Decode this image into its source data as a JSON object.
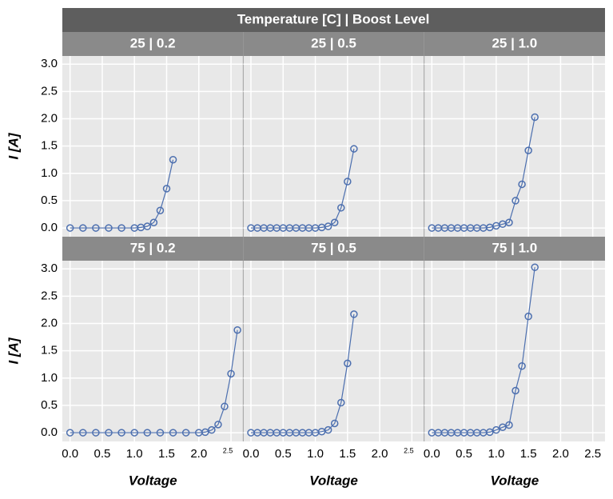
{
  "title": "Temperature [C] | Boost Level",
  "chart_data": [
    {
      "type": "line",
      "title": "25 | 0.2",
      "color": "#4c6faf",
      "grid": true,
      "ylabel": "I [A]",
      "x": [
        0,
        0.2,
        0.4,
        0.6,
        0.8,
        1.0,
        1.1,
        1.2,
        1.3,
        1.4,
        1.5,
        1.6
      ],
      "values": [
        0,
        0,
        0,
        0,
        0,
        0,
        0.01,
        0.03,
        0.1,
        0.32,
        0.72,
        1.25
      ],
      "xlim": [
        -0.12,
        2.69
      ],
      "ylim": [
        -0.16,
        3.15
      ],
      "xticks": [
        {
          "value": 0,
          "label": "0.0"
        },
        0.5,
        {
          "value": 1,
          "label": "1.0"
        },
        1.5,
        {
          "value": 2,
          "label": "2.0"
        },
        2.5
      ],
      "yticks": [
        {
          "value": 0,
          "label": "0.0"
        },
        0.5,
        {
          "value": 1,
          "label": "1.0"
        },
        1.5,
        {
          "value": 2,
          "label": "2.0"
        },
        2.5,
        {
          "value": 3,
          "label": "3.0"
        }
      ]
    },
    {
      "type": "line",
      "title": "25 | 0.5",
      "color": "#4c6faf",
      "grid": true,
      "x": [
        0,
        0.1,
        0.2,
        0.3,
        0.4,
        0.5,
        0.6,
        0.7,
        0.8,
        0.9,
        1.0,
        1.1,
        1.2,
        1.3,
        1.4,
        1.5,
        1.6
      ],
      "values": [
        0,
        0,
        0,
        0,
        0,
        0,
        0,
        0,
        0,
        0,
        0,
        0.01,
        0.03,
        0.1,
        0.37,
        0.85,
        1.45
      ],
      "xlim": [
        -0.12,
        2.69
      ],
      "ylim": [
        -0.16,
        3.15
      ],
      "xticks": [
        {
          "value": 0,
          "label": "0.0"
        },
        0.5,
        {
          "value": 1,
          "label": "1.0"
        },
        1.5,
        {
          "value": 2,
          "label": "2.0"
        },
        2.5
      ],
      "yticks": [
        {
          "value": 0,
          "label": "0.0"
        },
        0.5,
        {
          "value": 1,
          "label": "1.0"
        },
        1.5,
        {
          "value": 2,
          "label": "2.0"
        },
        2.5,
        {
          "value": 3,
          "label": "3.0"
        }
      ]
    },
    {
      "type": "line",
      "title": "25 | 1.0",
      "color": "#4c6faf",
      "grid": true,
      "x": [
        0,
        0.1,
        0.2,
        0.3,
        0.4,
        0.5,
        0.6,
        0.7,
        0.8,
        0.9,
        1.0,
        1.1,
        1.2,
        1.3,
        1.4,
        1.5,
        1.6
      ],
      "values": [
        0,
        0,
        0,
        0,
        0,
        0,
        0,
        0,
        0,
        0.01,
        0.04,
        0.07,
        0.1,
        0.5,
        0.8,
        1.42,
        2.03
      ],
      "xlim": [
        -0.12,
        2.69
      ],
      "ylim": [
        -0.16,
        3.15
      ],
      "xticks": [
        {
          "value": 0,
          "label": "0.0"
        },
        0.5,
        {
          "value": 1,
          "label": "1.0"
        },
        1.5,
        {
          "value": 2,
          "label": "2.0"
        },
        2.5
      ],
      "yticks": [
        {
          "value": 0,
          "label": "0.0"
        },
        0.5,
        {
          "value": 1,
          "label": "1.0"
        },
        1.5,
        {
          "value": 2,
          "label": "2.0"
        },
        2.5,
        {
          "value": 3,
          "label": "3.0"
        }
      ]
    },
    {
      "type": "line",
      "title": "75 | 0.2",
      "color": "#4c6faf",
      "grid": true,
      "ylabel": "I [A]",
      "xlabel": "Voltage",
      "x": [
        0,
        0.2,
        0.4,
        0.6,
        0.8,
        1.0,
        1.2,
        1.4,
        1.6,
        1.8,
        2.0,
        2.1,
        2.2,
        2.3,
        2.4,
        2.5,
        2.6
      ],
      "values": [
        0,
        0,
        0,
        0,
        0,
        0,
        0,
        0,
        0,
        0,
        0,
        0.01,
        0.05,
        0.15,
        0.48,
        1.08,
        1.88
      ],
      "xlim": [
        -0.12,
        2.69
      ],
      "ylim": [
        -0.16,
        3.15
      ],
      "xticks": [
        {
          "value": 0,
          "label": "0.0"
        },
        0.5,
        {
          "value": 1,
          "label": "1.0"
        },
        1.5,
        {
          "value": 2,
          "label": "2.0"
        },
        2.5
      ],
      "yticks": [
        {
          "value": 0,
          "label": "0.0"
        },
        0.5,
        {
          "value": 1,
          "label": "1.0"
        },
        1.5,
        {
          "value": 2,
          "label": "2.0"
        },
        2.5,
        {
          "value": 3,
          "label": "3.0"
        }
      ]
    },
    {
      "type": "line",
      "title": "75 | 0.5",
      "color": "#4c6faf",
      "grid": true,
      "xlabel": "Voltage",
      "x": [
        0,
        0.1,
        0.2,
        0.3,
        0.4,
        0.5,
        0.6,
        0.7,
        0.8,
        0.9,
        1.0,
        1.1,
        1.2,
        1.3,
        1.4,
        1.5,
        1.6
      ],
      "values": [
        0,
        0,
        0,
        0,
        0,
        0,
        0,
        0,
        0,
        0,
        0,
        0.02,
        0.05,
        0.17,
        0.55,
        1.27,
        2.17
      ],
      "xlim": [
        -0.12,
        2.69
      ],
      "ylim": [
        -0.16,
        3.15
      ],
      "xticks": [
        {
          "value": 0,
          "label": "0.0"
        },
        0.5,
        {
          "value": 1,
          "label": "1.0"
        },
        1.5,
        {
          "value": 2,
          "label": "2.0"
        },
        2.5
      ],
      "yticks": [
        {
          "value": 0,
          "label": "0.0"
        },
        0.5,
        {
          "value": 1,
          "label": "1.0"
        },
        1.5,
        {
          "value": 2,
          "label": "2.0"
        },
        2.5,
        {
          "value": 3,
          "label": "3.0"
        }
      ]
    },
    {
      "type": "line",
      "title": "75 | 1.0",
      "color": "#4c6faf",
      "grid": true,
      "xlabel": "Voltage",
      "x": [
        0,
        0.1,
        0.2,
        0.3,
        0.4,
        0.5,
        0.6,
        0.7,
        0.8,
        0.9,
        1.0,
        1.1,
        1.2,
        1.3,
        1.4,
        1.5,
        1.6
      ],
      "values": [
        0,
        0,
        0,
        0,
        0,
        0,
        0,
        0,
        0,
        0.01,
        0.05,
        0.1,
        0.14,
        0.77,
        1.22,
        2.13,
        3.03
      ],
      "xlim": [
        -0.12,
        2.69
      ],
      "ylim": [
        -0.16,
        3.15
      ],
      "xticks": [
        {
          "value": 0,
          "label": "0.0"
        },
        0.5,
        {
          "value": 1,
          "label": "1.0"
        },
        1.5,
        {
          "value": 2,
          "label": "2.0"
        },
        2.5
      ],
      "yticks": [
        {
          "value": 0,
          "label": "0.0"
        },
        0.5,
        {
          "value": 1,
          "label": "1.0"
        },
        1.5,
        {
          "value": 2,
          "label": "2.0"
        },
        2.5,
        {
          "value": 3,
          "label": "3.0"
        }
      ]
    }
  ]
}
